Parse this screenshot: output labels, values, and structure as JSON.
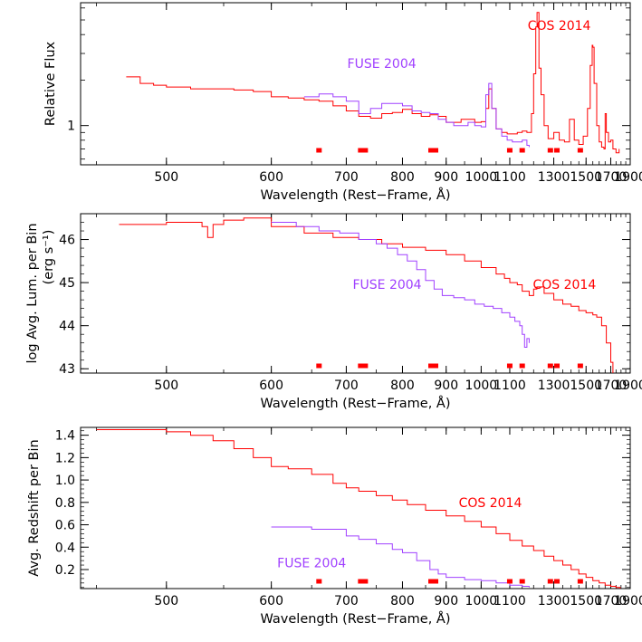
{
  "colors": {
    "cos": "#ff0000",
    "fuse": "#a040ff",
    "axis": "#000000",
    "marker": "#ff0000"
  },
  "chart_data": [
    {
      "type": "line",
      "ylabel": "Relative Flux",
      "xlabel": "Wavelength (Rest−Frame, Å)",
      "x_scale": "reciprocal",
      "y_scale": "log",
      "xlim": [
        440,
        1900
      ],
      "ylim": [
        0.55,
        6.5
      ],
      "x_ticks": [
        500,
        600,
        700,
        800,
        900,
        1000,
        1100,
        1300,
        1500,
        1700,
        1900
      ],
      "x_tick_labels": [
        "500",
        "600",
        "700",
        "800",
        "900",
        "1000",
        "1100",
        "1300",
        "1500",
        "1700",
        "1900"
      ],
      "y_ticks": [
        1
      ],
      "y_tick_labels": [
        "1"
      ],
      "annotations": [
        {
          "text": "COS 2014",
          "color": "#ff0000",
          "x": 1330,
          "y": 4.3
        },
        {
          "text": "FUSE 2004",
          "color": "#a040ff",
          "x": 760,
          "y": 2.4
        }
      ],
      "markers": [
        660,
        727,
        868,
        1100,
        1150,
        1282,
        1317,
        1460
      ],
      "series": [
        {
          "name": "COS 2014",
          "color": "#ff0000",
          "x": [
            470,
            480,
            490,
            500,
            520,
            540,
            560,
            580,
            600,
            620,
            640,
            660,
            680,
            700,
            720,
            740,
            760,
            780,
            800,
            820,
            840,
            860,
            880,
            900,
            920,
            940,
            960,
            980,
            1000,
            1015,
            1025,
            1035,
            1050,
            1070,
            1090,
            1110,
            1130,
            1150,
            1170,
            1190,
            1200,
            1210,
            1216,
            1225,
            1235,
            1250,
            1270,
            1300,
            1330,
            1360,
            1390,
            1420,
            1450,
            1480,
            1510,
            1530,
            1545,
            1550,
            1560,
            1580,
            1600,
            1620,
            1640,
            1650,
            1660,
            1680,
            1700,
            1720,
            1750,
            1780
          ],
          "y": [
            2.1,
            1.9,
            1.85,
            1.8,
            1.75,
            1.75,
            1.72,
            1.68,
            1.55,
            1.52,
            1.48,
            1.45,
            1.35,
            1.25,
            1.15,
            1.12,
            1.2,
            1.22,
            1.28,
            1.2,
            1.15,
            1.18,
            1.15,
            1.05,
            1.05,
            1.1,
            1.1,
            1.05,
            1.06,
            1.3,
            1.75,
            1.3,
            0.95,
            0.9,
            0.88,
            0.88,
            0.9,
            0.92,
            0.9,
            1.2,
            2.2,
            4.5,
            5.6,
            2.4,
            1.6,
            1.0,
            0.82,
            0.9,
            0.8,
            0.78,
            1.1,
            0.8,
            0.75,
            0.85,
            1.3,
            2.5,
            3.4,
            3.3,
            1.9,
            1.0,
            0.78,
            0.72,
            0.7,
            1.2,
            0.9,
            0.78,
            0.8,
            0.7,
            0.66,
            0.7
          ]
        },
        {
          "name": "FUSE 2004",
          "color": "#a040ff",
          "x": [
            640,
            660,
            680,
            700,
            720,
            740,
            760,
            780,
            800,
            820,
            840,
            860,
            880,
            900,
            920,
            940,
            960,
            980,
            1000,
            1015,
            1025,
            1035,
            1050,
            1070,
            1090,
            1110,
            1130,
            1150,
            1170,
            1180
          ],
          "y": [
            1.55,
            1.62,
            1.55,
            1.45,
            1.2,
            1.3,
            1.4,
            1.4,
            1.35,
            1.25,
            1.22,
            1.2,
            1.1,
            1.05,
            1.0,
            1.0,
            1.05,
            1.0,
            0.98,
            1.6,
            1.9,
            1.3,
            0.95,
            0.85,
            0.8,
            0.78,
            0.78,
            0.8,
            0.74,
            0.72
          ]
        }
      ]
    },
    {
      "type": "line",
      "ylabel": "log Avg. Lum. per Bin",
      "ylabel2": "(erg s⁻¹)",
      "xlabel": "Wavelength (Rest−Frame, Å)",
      "x_scale": "reciprocal",
      "xlim": [
        440,
        1900
      ],
      "ylim": [
        42.9,
        46.6
      ],
      "x_ticks": [
        500,
        600,
        700,
        800,
        900,
        1000,
        1100,
        1300,
        1500,
        1700,
        1900
      ],
      "x_tick_labels": [
        "500",
        "600",
        "700",
        "800",
        "900",
        "1000",
        "1100",
        "1300",
        "1500",
        "1700",
        "1900"
      ],
      "y_ticks": [
        43,
        44,
        45,
        46
      ],
      "y_tick_labels": [
        "43",
        "44",
        "45",
        "46"
      ],
      "annotations": [
        {
          "text": "COS 2014",
          "color": "#ff0000",
          "x": 1360,
          "y": 44.85
        },
        {
          "text": "FUSE 2004",
          "color": "#a040ff",
          "x": 770,
          "y": 44.85
        }
      ],
      "markers": [
        660,
        727,
        868,
        1100,
        1150,
        1282,
        1317,
        1460
      ],
      "series": [
        {
          "name": "COS 2014",
          "color": "#ff0000",
          "x": [
            465,
            480,
            500,
            520,
            530,
            535,
            540,
            550,
            570,
            600,
            640,
            680,
            720,
            760,
            800,
            850,
            900,
            950,
            1000,
            1050,
            1080,
            1100,
            1130,
            1150,
            1180,
            1200,
            1215,
            1250,
            1300,
            1350,
            1400,
            1450,
            1500,
            1550,
            1580,
            1620,
            1660,
            1700,
            1720
          ],
          "y": [
            46.35,
            46.35,
            46.4,
            46.4,
            46.3,
            46.05,
            46.35,
            46.45,
            46.5,
            46.3,
            46.15,
            46.05,
            46.0,
            45.9,
            45.82,
            45.75,
            45.65,
            45.5,
            45.35,
            45.2,
            45.1,
            45.0,
            44.95,
            44.8,
            44.7,
            44.85,
            44.9,
            44.75,
            44.6,
            44.5,
            44.45,
            44.35,
            44.3,
            44.25,
            44.2,
            44.0,
            43.6,
            43.15,
            42.9
          ]
        },
        {
          "name": "FUSE 2004",
          "color": "#a040ff",
          "x": [
            600,
            630,
            660,
            690,
            720,
            750,
            770,
            790,
            810,
            830,
            850,
            870,
            890,
            920,
            950,
            980,
            1010,
            1040,
            1070,
            1100,
            1120,
            1140,
            1150,
            1160,
            1170,
            1180
          ],
          "y": [
            46.4,
            46.3,
            46.2,
            46.15,
            46.0,
            45.9,
            45.8,
            45.65,
            45.5,
            45.3,
            45.05,
            44.85,
            44.7,
            44.65,
            44.6,
            44.5,
            44.45,
            44.4,
            44.3,
            44.2,
            44.1,
            44.0,
            43.8,
            43.5,
            43.7,
            43.6
          ]
        }
      ]
    },
    {
      "type": "line",
      "ylabel": "Avg. Redshift per Bin",
      "xlabel": "Wavelength (Rest−Frame, Å)",
      "x_scale": "reciprocal",
      "xlim": [
        440,
        1900
      ],
      "ylim": [
        0.03,
        1.47
      ],
      "x_ticks": [
        500,
        600,
        700,
        800,
        900,
        1000,
        1100,
        1300,
        1500,
        1700,
        1900
      ],
      "x_tick_labels": [
        "500",
        "600",
        "700",
        "800",
        "900",
        "1000",
        "1100",
        "1300",
        "1500",
        "1700",
        "1900"
      ],
      "y_ticks": [
        0.2,
        0.4,
        0.6,
        0.8,
        1.0,
        1.2,
        1.4
      ],
      "y_tick_labels": [
        "0.2",
        "0.4",
        "0.6",
        "0.8",
        "1.0",
        "1.2",
        "1.4"
      ],
      "annotations": [
        {
          "text": "COS 2014",
          "color": "#ff0000",
          "x": 1030,
          "y": 0.76
        },
        {
          "text": "FUSE 2004",
          "color": "#a040ff",
          "x": 650,
          "y": 0.22
        }
      ],
      "markers": [
        660,
        727,
        868,
        1100,
        1150,
        1282,
        1317,
        1460
      ],
      "series": [
        {
          "name": "COS 2014",
          "color": "#ff0000",
          "x": [
            450,
            480,
            500,
            520,
            540,
            560,
            580,
            600,
            620,
            650,
            680,
            700,
            720,
            750,
            780,
            810,
            850,
            900,
            950,
            1000,
            1050,
            1100,
            1150,
            1200,
            1250,
            1300,
            1350,
            1400,
            1450,
            1500,
            1550,
            1600,
            1650,
            1700,
            1750,
            1790
          ],
          "y": [
            1.45,
            1.45,
            1.43,
            1.4,
            1.35,
            1.28,
            1.2,
            1.12,
            1.1,
            1.05,
            0.97,
            0.93,
            0.9,
            0.86,
            0.82,
            0.78,
            0.73,
            0.68,
            0.63,
            0.58,
            0.52,
            0.46,
            0.41,
            0.37,
            0.32,
            0.28,
            0.24,
            0.2,
            0.16,
            0.13,
            0.1,
            0.08,
            0.06,
            0.05,
            0.04,
            0.03
          ]
        },
        {
          "name": "FUSE 2004",
          "color": "#a040ff",
          "x": [
            600,
            650,
            700,
            720,
            750,
            780,
            800,
            830,
            860,
            880,
            900,
            950,
            1000,
            1050,
            1100,
            1150,
            1180
          ],
          "y": [
            0.58,
            0.56,
            0.5,
            0.47,
            0.43,
            0.38,
            0.35,
            0.28,
            0.2,
            0.16,
            0.13,
            0.11,
            0.1,
            0.08,
            0.06,
            0.05,
            0.04
          ]
        }
      ]
    }
  ]
}
